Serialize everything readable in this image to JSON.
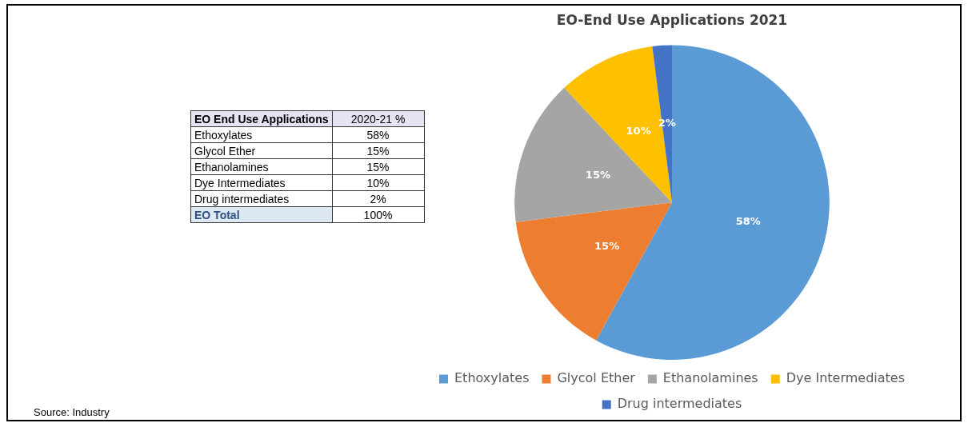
{
  "chart_data": {
    "type": "pie",
    "title": "EO-End Use Applications 2021",
    "categories": [
      "Ethoxylates",
      "Glycol Ether",
      "Ethanolamines",
      "Dye Intermediates",
      "Drug intermediates"
    ],
    "values": [
      58,
      15,
      15,
      10,
      2
    ],
    "value_labels": [
      "58%",
      "15%",
      "15%",
      "10%",
      "2%"
    ],
    "colors": [
      "#5b9bd5",
      "#ed7d31",
      "#a5a5a5",
      "#ffc000",
      "#4472c4"
    ],
    "legend": "bottom",
    "annotations": [
      "EO End Use Applications",
      "2020-21 %",
      "EO Total",
      "100%",
      "Source: Industry"
    ]
  }
}
